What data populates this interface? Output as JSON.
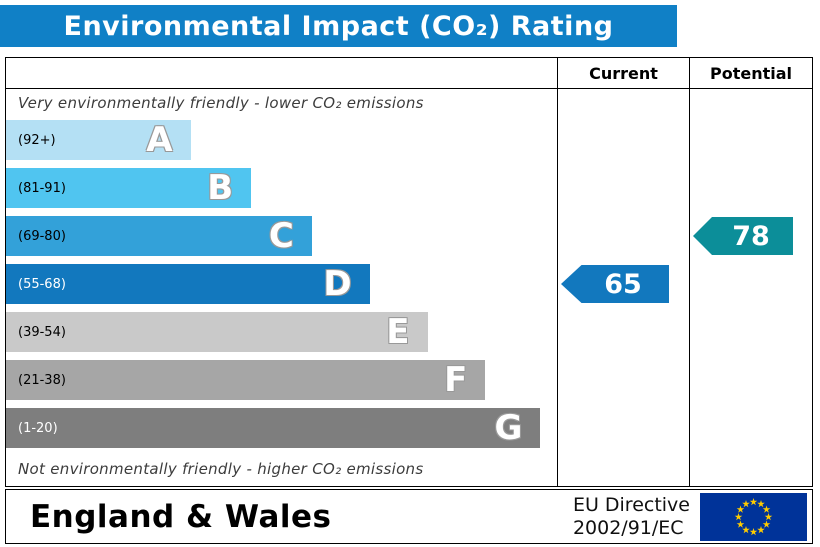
{
  "title": "Environmental Impact (CO₂) Rating",
  "table": {
    "current_header": "Current",
    "potential_header": "Potential"
  },
  "captions": {
    "top": "Very environmentally friendly - lower CO₂ emissions",
    "bottom": "Not environmentally friendly - higher CO₂ emissions"
  },
  "footer": {
    "region": "England & Wales",
    "directive_line1": "EU Directive",
    "directive_line2": "2002/91/EC",
    "flag_icon": "eu-flag"
  },
  "colors": {
    "title_bar": "#1080c6",
    "current_arrow": "#1278be",
    "potential_arrow": "#0c8e99",
    "flag_blue": "#003399",
    "flag_star": "#ffcc00"
  },
  "chart_data": {
    "type": "epc-band-rating",
    "title": "Environmental Impact (CO₂) Rating",
    "bands": [
      {
        "letter": "A",
        "range_label": "(92+)",
        "color": "#b4e0f4",
        "width_pct": 33.5
      },
      {
        "letter": "B",
        "range_label": "(81-91)",
        "color": "#50c5f0",
        "width_pct": 44.5
      },
      {
        "letter": "C",
        "range_label": "(69-80)",
        "color": "#33a1d9",
        "width_pct": 55.5
      },
      {
        "letter": "D",
        "range_label": "(55-68)",
        "color": "#1278be",
        "width_pct": 66
      },
      {
        "letter": "E",
        "range_label": "(39-54)",
        "color": "#c9c9c9",
        "width_pct": 76.5
      },
      {
        "letter": "F",
        "range_label": "(21-38)",
        "color": "#a6a6a6",
        "width_pct": 87
      },
      {
        "letter": "G",
        "range_label": "(1-20)",
        "color": "#7e7e7e",
        "width_pct": 97
      }
    ],
    "current": {
      "value": 65,
      "band": "D",
      "color": "#1278be"
    },
    "potential": {
      "value": 78,
      "band": "C",
      "color": "#0c8e99"
    }
  }
}
